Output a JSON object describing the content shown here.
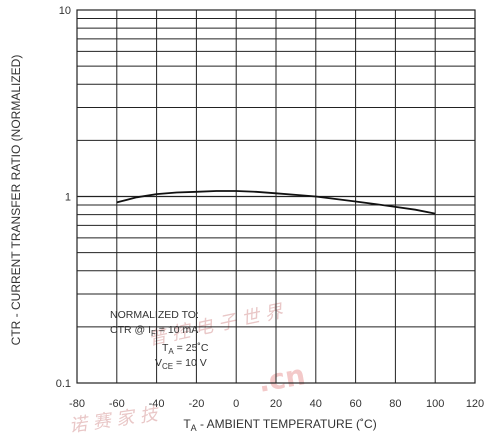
{
  "chart_data": {
    "type": "line",
    "xlabel": "T_A - AMBIENT TEMPERATURE (˚C)",
    "ylabel": "CTR - CURRENT TRANSFER RATIO (NORMALIZED)",
    "xlim": [
      -80,
      120
    ],
    "ylim": [
      0.1,
      10
    ],
    "yscale": "log",
    "grid": true,
    "x_ticks": [
      "-80",
      "-60",
      "-40",
      "-20",
      "0",
      "20",
      "40",
      "60",
      "80",
      "100",
      "120"
    ],
    "y_ticks": [
      "0.1",
      "1",
      "10"
    ],
    "annotation": {
      "line1": "NORMALIZED TO:",
      "line2_prefix": "CTR @ I",
      "line2_sub": "F",
      "line2_rest": " = 10 mA",
      "line3_prefix": "T",
      "line3_sub": "A",
      "line3_rest": " = 25˚C",
      "line4_prefix": "V",
      "line4_sub": "CE",
      "line4_rest": " = 10 V"
    },
    "series": [
      {
        "x": [
          -60,
          -50,
          -40,
          -30,
          -20,
          -10,
          0,
          10,
          20,
          30,
          40,
          50,
          60,
          70,
          80,
          90,
          100
        ],
        "y": [
          0.93,
          0.99,
          1.03,
          1.05,
          1.06,
          1.07,
          1.07,
          1.06,
          1.04,
          1.02,
          1.0,
          0.97,
          0.94,
          0.91,
          0.88,
          0.85,
          0.81
        ]
      }
    ]
  }
}
